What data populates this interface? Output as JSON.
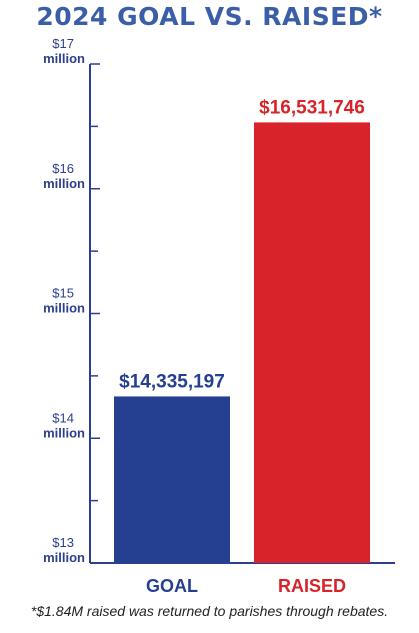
{
  "chart_data": {
    "type": "bar",
    "title": "2024 GOAL VS. RAISED*",
    "categories": [
      "GOAL",
      "RAISED"
    ],
    "values": [
      14335197,
      16531746
    ],
    "value_labels": [
      "$14,335,197",
      "$16,531,746"
    ],
    "ylim": [
      13000000,
      17000000
    ],
    "y_ticks": [
      {
        "value": 17000000,
        "amount": "$17",
        "unit": "million"
      },
      {
        "value": 16000000,
        "amount": "$16",
        "unit": "million"
      },
      {
        "value": 15000000,
        "amount": "$15",
        "unit": "million"
      },
      {
        "value": 14000000,
        "amount": "$14",
        "unit": "million"
      },
      {
        "value": 13000000,
        "amount": "$13",
        "unit": "million"
      }
    ],
    "minor_tick_step": 500000,
    "grid": false,
    "colors": {
      "title": "#3a5ea8",
      "axis": "#2d3f8c",
      "bars": [
        "#253f91",
        "#d8232a"
      ],
      "labels": [
        "#253f91",
        "#d8232a"
      ]
    },
    "footnote": "*$1.84M raised was returned to parishes through rebates."
  }
}
